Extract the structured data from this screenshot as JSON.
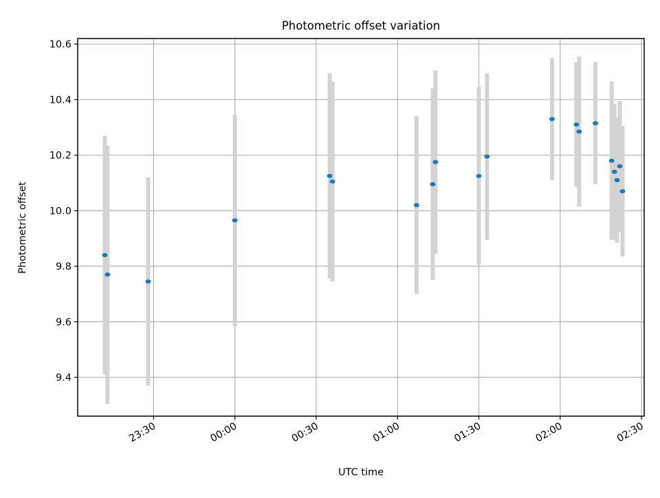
{
  "chart_data": {
    "type": "scatter",
    "title": "Photometric offset variation",
    "xlabel": "UTC time",
    "ylabel": "Photometric offset",
    "grid": true,
    "legend": "none",
    "colors": {
      "marker": "#1f77b4",
      "errorbar": "#d3d3d3",
      "grid": "#b0b0b0"
    },
    "xlim": [
      "23:02",
      "02:31"
    ],
    "ylim": [
      9.26,
      10.62
    ],
    "x_ticks": [
      "23:30",
      "00:00",
      "00:30",
      "01:00",
      "01:30",
      "02:00",
      "02:30"
    ],
    "y_ticks": [
      "9.4",
      "9.6",
      "9.8",
      "10.0",
      "10.2",
      "10.4",
      "10.6"
    ],
    "points": [
      {
        "x": "23:12",
        "y": 9.84,
        "err": 0.43
      },
      {
        "x": "23:13",
        "y": 9.77,
        "err": 0.465
      },
      {
        "x": "23:28",
        "y": 9.745,
        "err": 0.375
      },
      {
        "x": "00:00",
        "y": 9.965,
        "err": 0.38
      },
      {
        "x": "00:35",
        "y": 10.125,
        "err": 0.37
      },
      {
        "x": "00:36",
        "y": 10.105,
        "err": 0.36
      },
      {
        "x": "01:07",
        "y": 10.02,
        "err": 0.32
      },
      {
        "x": "01:13",
        "y": 10.095,
        "err": 0.345
      },
      {
        "x": "01:14",
        "y": 10.175,
        "err": 0.33
      },
      {
        "x": "01:30",
        "y": 10.125,
        "err": 0.32
      },
      {
        "x": "01:33",
        "y": 10.195,
        "err": 0.3
      },
      {
        "x": "01:57",
        "y": 10.33,
        "err": 0.22
      },
      {
        "x": "02:06",
        "y": 10.31,
        "err": 0.225
      },
      {
        "x": "02:07",
        "y": 10.285,
        "err": 0.27
      },
      {
        "x": "02:13",
        "y": 10.315,
        "err": 0.22
      },
      {
        "x": "02:19",
        "y": 10.18,
        "err": 0.285
      },
      {
        "x": "02:20",
        "y": 10.14,
        "err": 0.245
      },
      {
        "x": "02:21",
        "y": 10.11,
        "err": 0.225
      },
      {
        "x": "02:22",
        "y": 10.16,
        "err": 0.235
      },
      {
        "x": "02:23",
        "y": 10.07,
        "err": 0.235
      }
    ]
  }
}
